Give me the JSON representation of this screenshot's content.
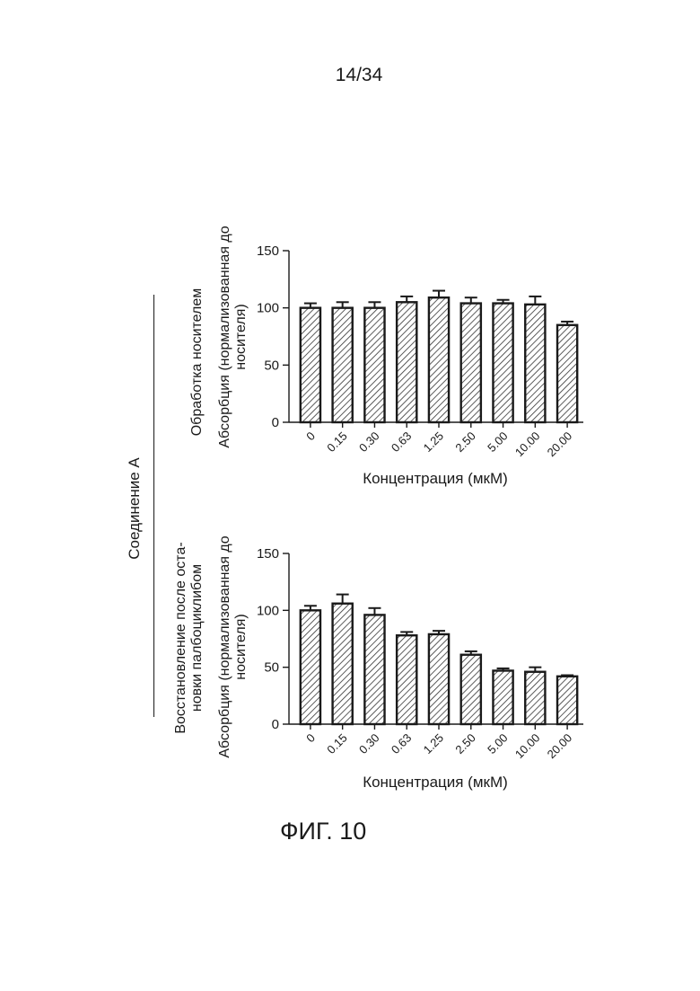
{
  "page_number": "14/34",
  "figure_caption": "ФИГ. 10",
  "compound_label": "Соединение А",
  "colors": {
    "ink": "#1a1a1a",
    "hatch": "#333333",
    "background": "#ffffff"
  },
  "chart_data": [
    {
      "type": "bar",
      "panel_label": "Обработка носителем",
      "ylabel": [
        "Абсорбция (нормализованная до",
        "носителя)"
      ],
      "xlabel": "Концентрация (мкМ)",
      "categories": [
        "0",
        "0.15",
        "0.30",
        "0.63",
        "1.25",
        "2.50",
        "5.00",
        "10.00",
        "20.00"
      ],
      "values": [
        100,
        100,
        100,
        105,
        109,
        104,
        104,
        103,
        85
      ],
      "errors": [
        4,
        5,
        5,
        5,
        6,
        5,
        3,
        7,
        3
      ],
      "yticks": [
        0,
        50,
        100,
        150
      ],
      "ylim": [
        0,
        150
      ],
      "fill": "hatched"
    },
    {
      "type": "bar",
      "panel_label": [
        "Восстановление после оста-",
        "новки палбоциклибом"
      ],
      "ylabel": [
        "Абсорбция (нормализованная до",
        "носителя)"
      ],
      "xlabel": "Концентрация (мкМ)",
      "categories": [
        "0",
        "0.15",
        "0.30",
        "0.63",
        "1.25",
        "2.50",
        "5.00",
        "10.00",
        "20.00"
      ],
      "values": [
        100,
        106,
        96,
        78,
        79,
        61,
        47,
        46,
        42
      ],
      "errors": [
        4,
        8,
        6,
        3,
        3,
        3,
        2,
        4,
        1
      ],
      "yticks": [
        0,
        50,
        100,
        150
      ],
      "ylim": [
        0,
        150
      ],
      "fill": "hatched"
    }
  ]
}
